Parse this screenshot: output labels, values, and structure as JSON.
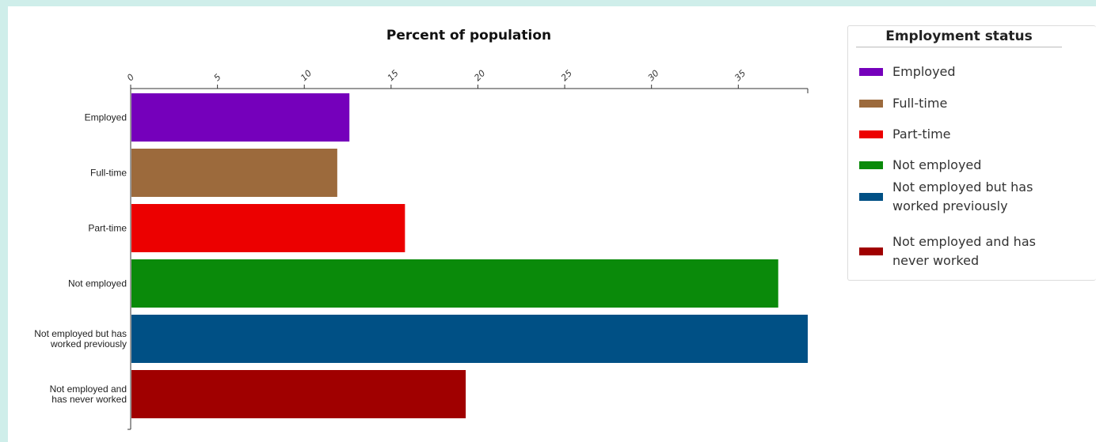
{
  "chart_data": {
    "type": "bar",
    "orientation": "horizontal",
    "title": "Percent of population",
    "xlabel": "",
    "ylabel": "",
    "xlim": [
      0,
      39
    ],
    "xticks": [
      0,
      5,
      10,
      15,
      20,
      25,
      30,
      35
    ],
    "xaxis_position": "top",
    "grid": false,
    "legend_title": "Employment status",
    "legend_position": "right",
    "categories": [
      "Employed",
      "Full-time",
      "Part-time",
      "Not employed",
      "Not employed but has worked previously",
      "Not employed and has never worked"
    ],
    "values": [
      12.6,
      11.9,
      15.8,
      37.3,
      39.0,
      19.3
    ],
    "colors": [
      "#7500bb",
      "#9c6a3c",
      "#ec0000",
      "#0a8a0a",
      "#005085",
      "#a00000"
    ],
    "category_label_lines": [
      [
        "Employed"
      ],
      [
        "Full-time"
      ],
      [
        "Part-time"
      ],
      [
        "Not employed"
      ],
      [
        "Not employed but has",
        "worked previously"
      ],
      [
        "Not employed and",
        "has never worked"
      ]
    ],
    "legend_label_lines": [
      [
        "Employed"
      ],
      [
        "Full-time"
      ],
      [
        "Part-time"
      ],
      [
        "Not employed"
      ],
      [
        "Not employed but has",
        "worked previously"
      ],
      [
        "Not employed and has",
        "never worked"
      ]
    ]
  }
}
